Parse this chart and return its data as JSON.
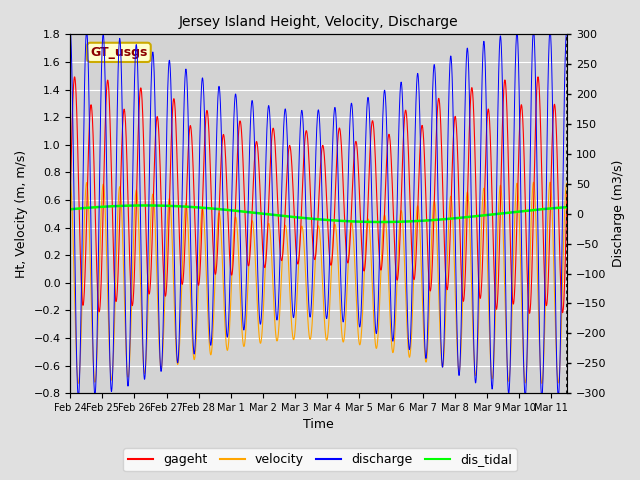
{
  "title": "Jersey Island Height, Velocity, Discharge",
  "xlabel": "Time",
  "ylabel_left": "Ht, Velocity (m, m/s)",
  "ylabel_right": "Discharge (m3/s)",
  "ylim_left": [
    -0.8,
    1.8
  ],
  "ylim_right": [
    -300,
    300
  ],
  "xlim": [
    0,
    15.5
  ],
  "x_tick_labels": [
    "Feb 24",
    "Feb 25",
    "Feb 26",
    "Feb 27",
    "Feb 28",
    "Mar 1",
    "Mar 2",
    "Mar 3",
    "Mar 4",
    "Mar 5",
    "Mar 6",
    "Mar 7",
    "Mar 8",
    "Mar 9",
    "Mar 10",
    "Mar 11"
  ],
  "x_tick_positions": [
    0,
    1,
    2,
    3,
    4,
    5,
    6,
    7,
    8,
    9,
    10,
    11,
    12,
    13,
    14,
    15
  ],
  "legend_labels": [
    "gageht",
    "velocity",
    "discharge",
    "dis_tidal"
  ],
  "gageht_color": "red",
  "velocity_color": "orange",
  "discharge_color": "blue",
  "dis_tidal_color": "lime",
  "annotation_text": "GT_usgs",
  "annotation_bg": "#ffffcc",
  "annotation_border": "#ccaa00",
  "fig_bg": "#e0e0e0",
  "plot_bg": "#d3d3d3",
  "n_points": 3000,
  "duration_days": 15.5,
  "tidal_period_hours": 12.4,
  "gageht_mean": 0.6,
  "gageht_amp_base": 0.62,
  "velocity_amp_base": 0.57,
  "discharge_amp_base": 240,
  "spring_neap_period_days": 14.7,
  "spring_neap_amplitude": 0.28,
  "dis_tidal_mean": 0.5,
  "dis_tidal_amp": 0.06
}
